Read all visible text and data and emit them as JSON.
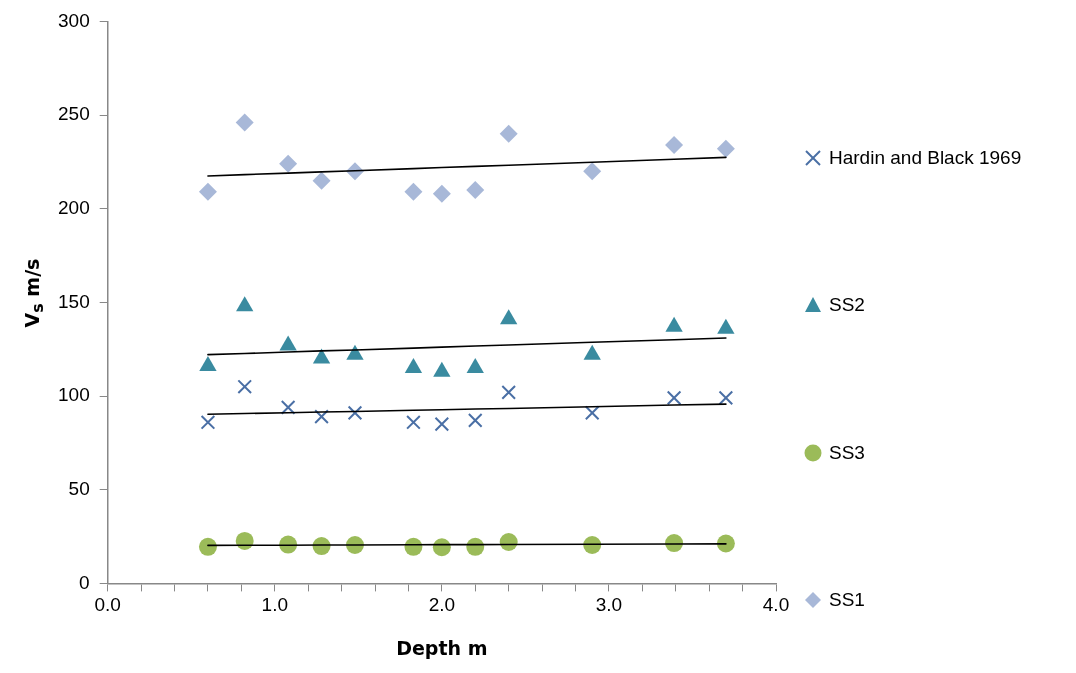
{
  "chart_data": {
    "type": "scatter",
    "xlabel": "Depth m",
    "ylabel": "V$_{s}$ m/s",
    "x": [
      0.6,
      0.82,
      1.08,
      1.28,
      1.48,
      1.83,
      2.0,
      2.2,
      2.4,
      2.9,
      3.39,
      3.7
    ],
    "series": [
      {
        "name": "Hardin and Black 1969",
        "color": "#4a6fa5",
        "marker": "cross",
        "values": [
          86,
          105,
          94,
          89,
          91,
          86,
          85,
          87,
          102,
          91,
          99,
          99
        ]
      },
      {
        "name": "SS2",
        "color": "#3a8ba0",
        "marker": "triangle",
        "values": [
          116,
          148,
          127,
          120,
          122,
          115,
          113,
          115,
          141,
          122,
          137,
          136
        ]
      },
      {
        "name": "SS3",
        "color": "#9bbb59",
        "marker": "circle",
        "values": [
          19.5,
          22.7,
          20.7,
          19.9,
          20.5,
          19.5,
          19.3,
          19.5,
          22.1,
          20.5,
          21.5,
          21.3
        ]
      },
      {
        "name": "SS1",
        "color": "#a8b8d8",
        "marker": "diamond",
        "values": [
          209,
          246,
          224,
          215,
          220,
          209,
          208,
          210,
          240,
          220,
          234,
          232
        ]
      },
      {
        "type": "line",
        "color": "#000000",
        "marker": "none",
        "line_style": "solid",
        "values": [
          90.3,
          90.7,
          91.1,
          91.5,
          91.8,
          92.4,
          92.7,
          93.1,
          93.4,
          94.3,
          95.2,
          95.7
        ]
      },
      {
        "type": "line",
        "color": "#000000",
        "marker": "none",
        "line_style": "solid",
        "values": [
          122.1,
          122.7,
          123.5,
          124.1,
          124.6,
          125.6,
          126.1,
          126.7,
          127.3,
          128.7,
          130.1,
          131.0
        ]
      },
      {
        "type": "line",
        "color": "#000000",
        "marker": "none",
        "line_style": "solid",
        "values": [
          20.3,
          20.4,
          20.4,
          20.5,
          20.5,
          20.6,
          20.7,
          20.7,
          20.8,
          20.9,
          21.0,
          21.1
        ]
      },
      {
        "type": "line",
        "color": "#000000",
        "marker": "none",
        "line_style": "solid",
        "values": [
          217.5,
          218.2,
          219.0,
          219.7,
          220.3,
          221.4,
          222.0,
          222.6,
          223.2,
          224.8,
          226.4,
          227.4
        ]
      }
    ],
    "xlim": [
      0,
      4
    ],
    "xticks": [
      {
        "value": 0,
        "label": "0.0"
      },
      {
        "value": 0.2,
        "label": null
      },
      {
        "value": 0.4,
        "label": null
      },
      {
        "value": 0.6,
        "label": null
      },
      {
        "value": 0.8,
        "label": null
      },
      {
        "value": 1,
        "label": "1.0"
      },
      {
        "value": 1.2,
        "label": null
      },
      {
        "value": 1.4,
        "label": null
      },
      {
        "value": 1.6,
        "label": null
      },
      {
        "value": 1.8,
        "label": null
      },
      {
        "value": 2,
        "label": "2.0"
      },
      {
        "value": 2.2,
        "label": null
      },
      {
        "value": 2.4,
        "label": null
      },
      {
        "value": 2.6,
        "label": null
      },
      {
        "value": 2.8,
        "label": null
      },
      {
        "value": 3,
        "label": "3.0"
      },
      {
        "value": 3.2,
        "label": null
      },
      {
        "value": 3.4,
        "label": null
      },
      {
        "value": 3.6,
        "label": null
      },
      {
        "value": 3.8,
        "label": null
      },
      {
        "value": 4,
        "label": "4.0"
      }
    ],
    "ylim": [
      0,
      300
    ],
    "yticks": [
      0,
      50,
      100,
      150,
      200,
      250,
      300
    ],
    "grid": false,
    "legend": "right"
  }
}
